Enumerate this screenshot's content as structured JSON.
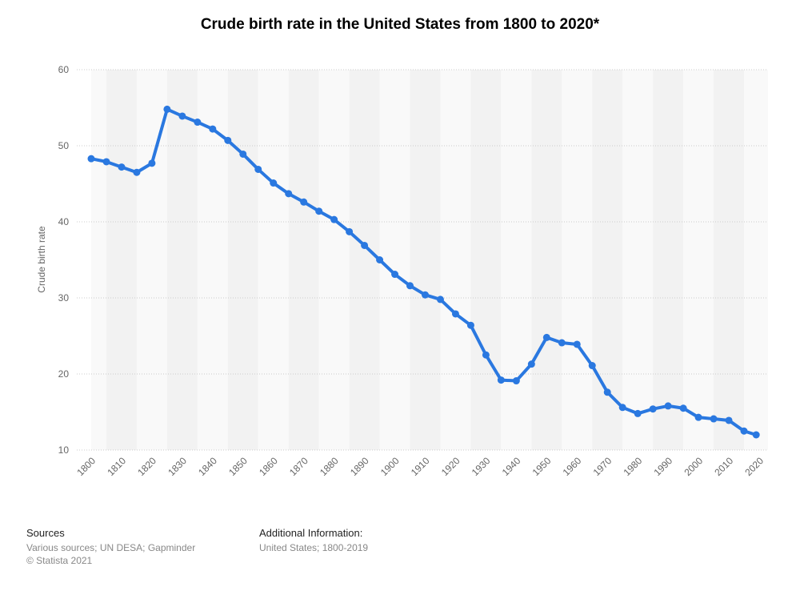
{
  "chart_data": {
    "type": "line",
    "title": "Crude birth rate in the United States from 1800 to 2020*",
    "ylabel": "Crude birth rate",
    "xlabel": "",
    "xlim": [
      1800,
      2020
    ],
    "ylim": [
      10,
      60
    ],
    "y_ticks": [
      10,
      20,
      30,
      40,
      50,
      60
    ],
    "x_ticks": [
      1800,
      1810,
      1820,
      1830,
      1840,
      1850,
      1860,
      1870,
      1880,
      1890,
      1900,
      1910,
      1920,
      1930,
      1940,
      1950,
      1960,
      1970,
      1980,
      1990,
      2000,
      2010,
      2020
    ],
    "x_tick_labels": [
      "1800",
      "1810",
      "1820",
      "1830",
      "1840",
      "1850",
      "1860",
      "1870",
      "1880",
      "1890",
      "1900",
      "1910",
      "1920",
      "1930",
      "1940",
      "1950",
      "1960",
      "1970",
      "1980",
      "1990",
      "2000",
      "2010",
      "2020"
    ],
    "grid": true,
    "series": [
      {
        "color": "#2a78e0",
        "x": [
          1800,
          1805,
          1810,
          1815,
          1820,
          1825,
          1830,
          1835,
          1840,
          1845,
          1850,
          1855,
          1860,
          1865,
          1870,
          1875,
          1880,
          1885,
          1890,
          1895,
          1900,
          1905,
          1910,
          1915,
          1920,
          1925,
          1930,
          1935,
          1940,
          1945,
          1950,
          1955,
          1960,
          1965,
          1970,
          1975,
          1980,
          1985,
          1990,
          1995,
          2000,
          2005,
          2010,
          2015,
          2019
        ],
        "y": [
          48.3,
          47.9,
          47.2,
          46.5,
          47.7,
          54.8,
          53.9,
          53.1,
          52.2,
          50.7,
          48.9,
          46.9,
          45.1,
          43.7,
          42.6,
          41.4,
          40.3,
          38.7,
          36.9,
          35.0,
          33.1,
          31.6,
          30.4,
          29.8,
          27.9,
          26.4,
          22.5,
          19.2,
          19.1,
          21.3,
          24.8,
          24.1,
          23.9,
          21.1,
          17.6,
          15.6,
          14.8,
          15.4,
          15.8,
          15.5,
          14.3,
          14.1,
          13.9,
          12.5,
          12.0
        ]
      }
    ]
  },
  "footer": {
    "sources_heading": "Sources",
    "sources_text": "Various sources; UN DESA; Gapminder",
    "copyright": "© Statista 2021",
    "additional_heading": "Additional Information:",
    "additional_text": "United States; 1800-2019"
  }
}
